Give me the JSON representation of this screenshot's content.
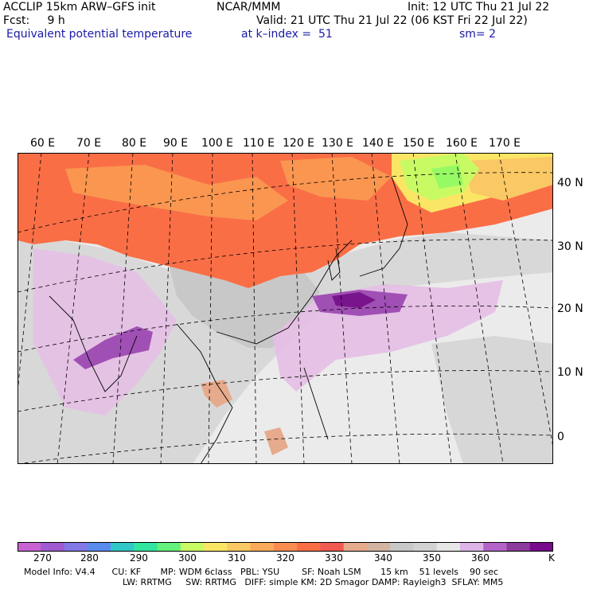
{
  "header": {
    "line1_left": "ACCLIP 15km ARW–GFS init",
    "line1_center": "NCAR/MMM",
    "line1_right": "Init: 12 UTC Thu 21 Jul 22",
    "line2_left": "Fcst:     9 h",
    "line2_right": "Valid: 21 UTC Thu 21 Jul 22 (06 KST Fri 22 Jul 22)",
    "line3_left": "Equivalent potential temperature",
    "line3_center": "at k–index =  51",
    "line3_right": "sm= 2"
  },
  "map": {
    "lon_labels": [
      "60 E",
      "70 E",
      "80 E",
      "90 E",
      "100 E",
      "110 E",
      "120 E",
      "130 E",
      "140 E",
      "150 E",
      "160 E",
      "170 E"
    ],
    "lat_labels": [
      "40 N",
      "30 N",
      "20 N",
      "10 N",
      "0"
    ],
    "colors": {
      "land_gray": "#c8c8c8",
      "sea_light": "#ebebeb",
      "orange": "#fa6e46",
      "orange_light": "#fa9650",
      "yellow": "#fae664",
      "green": "#c8fa64",
      "pink": "#e6bee6",
      "purple": "#a050b4",
      "dark_purple": "#78148c",
      "tan": "#e6aa8c"
    }
  },
  "colorbar": {
    "colors": [
      "#c864d2",
      "#a05ad2",
      "#8278e6",
      "#5a8cf0",
      "#32c8c8",
      "#32e6a0",
      "#64f07d",
      "#c8fa64",
      "#fae664",
      "#fac864",
      "#faaa5a",
      "#fa8c50",
      "#fa6e46",
      "#f05a50",
      "#e6aa8c",
      "#d2b4a0",
      "#c8c8c8",
      "#d2d2d2",
      "#e6e6e6",
      "#dcb4e6",
      "#b464c8",
      "#8c3c9c",
      "#780a8c"
    ],
    "labels": [
      "270",
      "280",
      "290",
      "300",
      "310",
      "320",
      "330",
      "340",
      "350",
      "360"
    ],
    "unit": "K"
  },
  "footer": {
    "line1": "Model Info: V4.4      CU: KF       MP: WDM 6class   PBL: YSU        SF: Noah LSM       15 km    51 levels    90 sec",
    "line2": "LW: RRTMG     SW: RRTMG   DIFF: simple KM: 2D Smagor DAMP: Rayleigh3  SFLAY: MM5"
  }
}
